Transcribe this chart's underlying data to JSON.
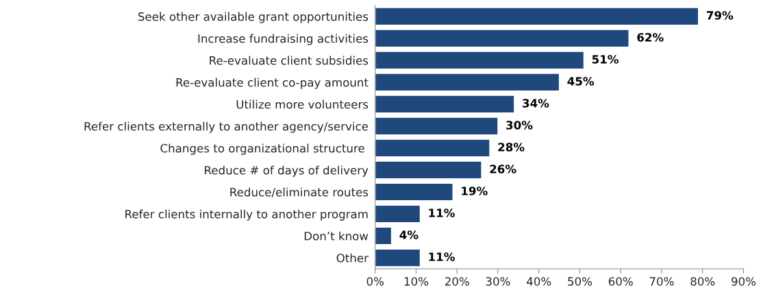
{
  "chart_data": {
    "type": "bar",
    "orientation": "horizontal",
    "categories": [
      "Seek other available grant opportunities",
      "Increase fundraising activities",
      "Re-evaluate client subsidies",
      "Re-evaluate client co-pay amount",
      "Utilize more volunteers",
      "Refer clients externally to another agency/service",
      "Changes to organizational structure ",
      "Reduce # of days of delivery",
      "Reduce/eliminate routes",
      "Refer clients internally to another program",
      "Don’t know",
      "Other"
    ],
    "values": [
      79,
      62,
      51,
      45,
      34,
      30,
      28,
      26,
      19,
      11,
      4,
      11
    ],
    "value_labels": [
      "79%",
      "62%",
      "51%",
      "45%",
      "34%",
      "30%",
      "28%",
      "26%",
      "19%",
      "11%",
      "4%",
      "11%"
    ],
    "color": "#1f497d",
    "xlim": [
      0,
      90
    ],
    "xticks": [
      {
        "value": 0,
        "label": "0%"
      },
      {
        "value": 10,
        "label": "10%"
      },
      {
        "value": 20,
        "label": "20%"
      },
      {
        "value": 30,
        "label": "30%"
      },
      {
        "value": 40,
        "label": "40%"
      },
      {
        "value": 50,
        "label": "50%"
      },
      {
        "value": 60,
        "label": "60%"
      },
      {
        "value": 70,
        "label": "70%"
      },
      {
        "value": 80,
        "label": "80%"
      },
      {
        "value": 90,
        "label": "90%"
      }
    ],
    "grid": false,
    "legend": false
  }
}
